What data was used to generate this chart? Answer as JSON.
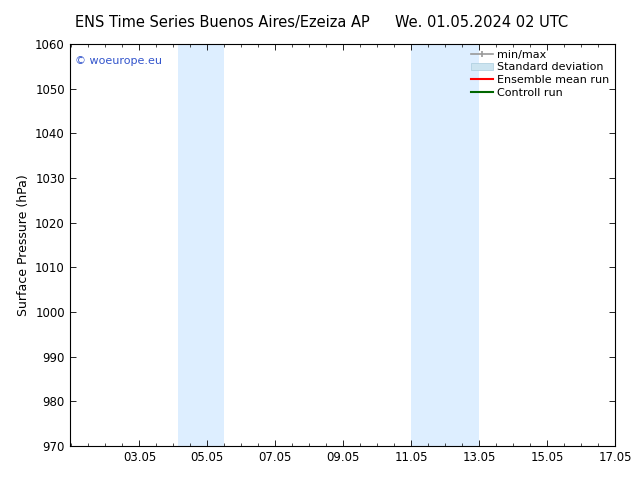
{
  "title_left": "ENS Time Series Buenos Aires/Ezeiza AP",
  "title_right": "We. 01.05.2024 02 UTC",
  "ylabel": "Surface Pressure (hPa)",
  "ylim": [
    970,
    1060
  ],
  "yticks": [
    970,
    980,
    990,
    1000,
    1010,
    1020,
    1030,
    1040,
    1050,
    1060
  ],
  "xlim": [
    1.0,
    17.05
  ],
  "xticks": [
    3.05,
    5.05,
    7.05,
    9.05,
    11.05,
    13.05,
    15.05,
    17.05
  ],
  "xlabel_labels": [
    "03.05",
    "05.05",
    "07.05",
    "09.05",
    "11.05",
    "13.05",
    "15.05",
    "17.05"
  ],
  "watermark": "© woeurope.eu",
  "watermark_color": "#3355cc",
  "shaded_regions": [
    {
      "xmin": 4.2,
      "xmax": 5.55,
      "color": "#ddeeff"
    },
    {
      "xmin": 11.05,
      "xmax": 13.05,
      "color": "#ddeeff"
    }
  ],
  "legend_entries": [
    {
      "label": "min/max",
      "color": "#999999",
      "lw": 1.2
    },
    {
      "label": "Standard deviation",
      "color": "#ccddee",
      "lw": 8
    },
    {
      "label": "Ensemble mean run",
      "color": "#ff0000",
      "lw": 1.5
    },
    {
      "label": "Controll run",
      "color": "#006600",
      "lw": 1.5
    }
  ],
  "bg_color": "#ffffff",
  "plot_bg_color": "#ffffff",
  "title_fontsize": 10.5,
  "label_fontsize": 9,
  "tick_fontsize": 8.5,
  "legend_fontsize": 8
}
